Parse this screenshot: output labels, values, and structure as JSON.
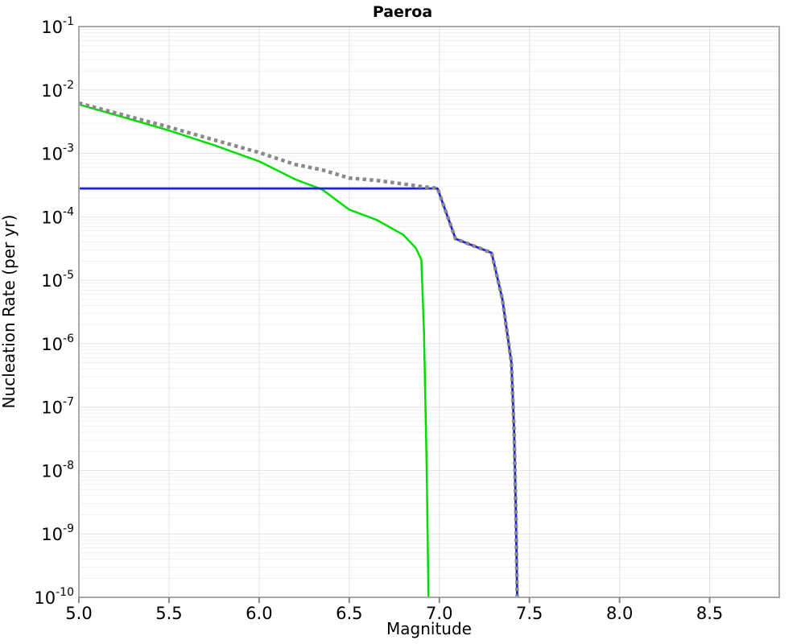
{
  "title": "Paeroa",
  "axes": {
    "xlabel": "Magnitude",
    "ylabel": "Nucleation Rate (per yr)",
    "x_tick_labels": [
      "5.0",
      "5.5",
      "6.0",
      "6.5",
      "7.0",
      "7.5",
      "8.0",
      "8.5"
    ],
    "x_tick_values": [
      5.0,
      5.5,
      6.0,
      6.5,
      7.0,
      7.5,
      8.0,
      8.5
    ],
    "y_tick_base": "10",
    "y_tick_exponents": [
      "-1",
      "-2",
      "-3",
      "-4",
      "-5",
      "-6",
      "-7",
      "-8",
      "-9",
      "-10"
    ]
  },
  "colors": {
    "green_line": "#00dd00",
    "blue_line": "#2323d9",
    "dotted_line": "#8a8a8a",
    "spine": "#a8a8a8",
    "grid_major": "#e3e3e3",
    "grid_minor": "#f1f1f1",
    "tick": "#888888",
    "background": "#ffffff"
  },
  "chart_data": {
    "type": "line",
    "title": "Paeroa",
    "xlabel": "Magnitude",
    "ylabel": "Nucleation Rate (per yr)",
    "xlim": [
      5.0,
      8.89
    ],
    "ylim": [
      1e-10,
      0.1
    ],
    "xscale": "linear",
    "yscale": "log",
    "grid": true,
    "legend": false,
    "series": [
      {
        "name": "green-solid-curve",
        "color": "#00dd00",
        "style": "solid",
        "width": 2.5,
        "points": [
          [
            5.0,
            0.0059
          ],
          [
            5.25,
            0.0037
          ],
          [
            5.5,
            0.0023
          ],
          [
            5.75,
            0.00135
          ],
          [
            6.0,
            0.00075
          ],
          [
            6.2,
            0.00039
          ],
          [
            6.35,
            0.00027
          ],
          [
            6.5,
            0.00013
          ],
          [
            6.65,
            9e-05
          ],
          [
            6.8,
            5.2e-05
          ],
          [
            6.87,
            3.2e-05
          ],
          [
            6.9,
            2.1e-05
          ],
          [
            6.915,
            1.5e-06
          ],
          [
            6.93,
            1e-08
          ],
          [
            6.94,
            1e-10
          ]
        ]
      },
      {
        "name": "blue-solid-curve",
        "color": "#2323d9",
        "style": "solid",
        "width": 2.8,
        "points": [
          [
            5.0,
            0.00028
          ],
          [
            6.99,
            0.00028
          ],
          [
            7.09,
            4.5e-05
          ],
          [
            7.29,
            2.7e-05
          ],
          [
            7.35,
            5e-06
          ],
          [
            7.4,
            5e-07
          ],
          [
            7.415,
            4e-08
          ],
          [
            7.425,
            2e-09
          ],
          [
            7.432,
            1e-10
          ]
        ]
      },
      {
        "name": "gray-dotted-curve",
        "color": "#8a8a8a",
        "style": "dotted",
        "width": 4.5,
        "points": [
          [
            5.0,
            0.0062
          ],
          [
            5.25,
            0.004
          ],
          [
            5.5,
            0.0026
          ],
          [
            5.75,
            0.00163
          ],
          [
            6.0,
            0.00103
          ],
          [
            6.2,
            0.00067
          ],
          [
            6.35,
            0.00055
          ],
          [
            6.5,
            0.00041
          ],
          [
            6.65,
            0.000375
          ],
          [
            6.8,
            0.00033
          ],
          [
            6.9,
            0.0003
          ],
          [
            6.99,
            0.000282
          ],
          [
            7.09,
            4.5e-05
          ],
          [
            7.29,
            2.7e-05
          ],
          [
            7.35,
            5e-06
          ],
          [
            7.4,
            5e-07
          ],
          [
            7.415,
            4e-08
          ],
          [
            7.425,
            2e-09
          ],
          [
            7.432,
            1e-10
          ]
        ]
      }
    ]
  }
}
